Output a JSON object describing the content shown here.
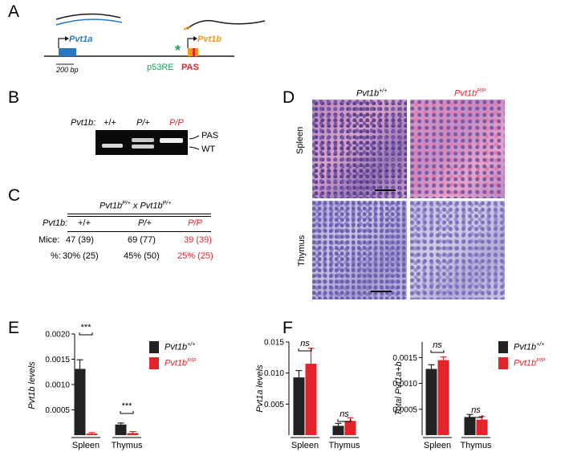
{
  "colors": {
    "pvt1a": "#2a78c4",
    "pvt1b": "#f49a20",
    "p53re": "#22a060",
    "pas": "#e3242b",
    "black": "#222222",
    "red": "#e3242b"
  },
  "panels": {
    "A": "A",
    "B": "B",
    "C": "C",
    "D": "D",
    "E": "E",
    "F": "F"
  },
  "panel_a": {
    "gene1": "Pvt1a",
    "gene2": "Pvt1b",
    "scale": "200 bp",
    "star": "*",
    "p53re": "p53RE",
    "pas": "PAS"
  },
  "panel_b": {
    "label": "Pvt1b:",
    "lanes": [
      "+/+",
      "P/+",
      "P/P"
    ],
    "band_top": "PAS",
    "band_bottom": "WT"
  },
  "panel_c": {
    "title": "Pvt1b",
    "title_sup": "P/+",
    "title_x": " x Pvt1b",
    "title_sup2": "P/+",
    "header_label": "Pvt1b:",
    "columns": [
      "+/+",
      "P/+",
      "P/P"
    ],
    "rows": [
      {
        "label": "Mice:",
        "values": [
          "47 (39)",
          "69 (77)",
          "39 (39)"
        ]
      },
      {
        "label": "%:",
        "values": [
          "30% (25)",
          "45% (50)",
          "25% (25)"
        ]
      }
    ]
  },
  "panel_d": {
    "col1": "Pvt1b",
    "col1_sup": "+/+",
    "col2": "Pvt1b",
    "col2_sup": "P/P",
    "row1": "Spleen",
    "row2": "Thymus"
  },
  "chart_data": [
    {
      "type": "bar",
      "ylabel": "Pvt1b levels",
      "categories": [
        "Spleen",
        "Thymus"
      ],
      "yticks": [
        "0.0020",
        "0.0015",
        "0.0010",
        "0.0005"
      ],
      "ylim": [
        0,
        0.002
      ],
      "series": [
        {
          "name": "Pvt1b+/+",
          "values": [
            0.00131,
            0.00021
          ],
          "errors": [
            0.00018,
            3e-05
          ]
        },
        {
          "name": "Pvt1bP/P",
          "values": [
            3e-05,
            4e-05
          ],
          "errors": [
            2e-05,
            3e-05
          ]
        }
      ],
      "annotations": [
        "***",
        "***"
      ]
    },
    {
      "type": "bar",
      "ylabel": "Pvt1a levels",
      "categories": [
        "Spleen",
        "Thymus"
      ],
      "yticks": [
        "0.015",
        "0.010",
        "0.005"
      ],
      "ylim": [
        0,
        0.015
      ],
      "series": [
        {
          "name": "Pvt1b+/+",
          "values": [
            0.0093,
            0.0015
          ],
          "errors": [
            0.0011,
            0.0004
          ]
        },
        {
          "name": "Pvt1bP/P",
          "values": [
            0.0115,
            0.0023
          ],
          "errors": [
            0.0025,
            0.0005
          ]
        }
      ],
      "annotations": [
        "ns",
        "ns"
      ]
    },
    {
      "type": "bar",
      "ylabel": "Total Pvt1a+b",
      "categories": [
        "Spleen",
        "Thymus"
      ],
      "yticks": [
        "0.0015",
        "0.0010",
        "0.0005"
      ],
      "ylim": [
        0,
        0.0018
      ],
      "series": [
        {
          "name": "Pvt1b+/+",
          "values": [
            0.00128,
            0.00035
          ],
          "errors": [
            8e-05,
            5e-05
          ]
        },
        {
          "name": "Pvt1bP/P",
          "values": [
            0.00145,
            0.0003
          ],
          "errors": [
            6e-05,
            6e-05
          ]
        }
      ],
      "annotations": [
        "ns",
        "ns"
      ]
    }
  ],
  "legend": {
    "e1": "Pvt1b",
    "e1_sup": "+/+",
    "e2": "Pvt1b",
    "e2_sup": "P/P"
  }
}
